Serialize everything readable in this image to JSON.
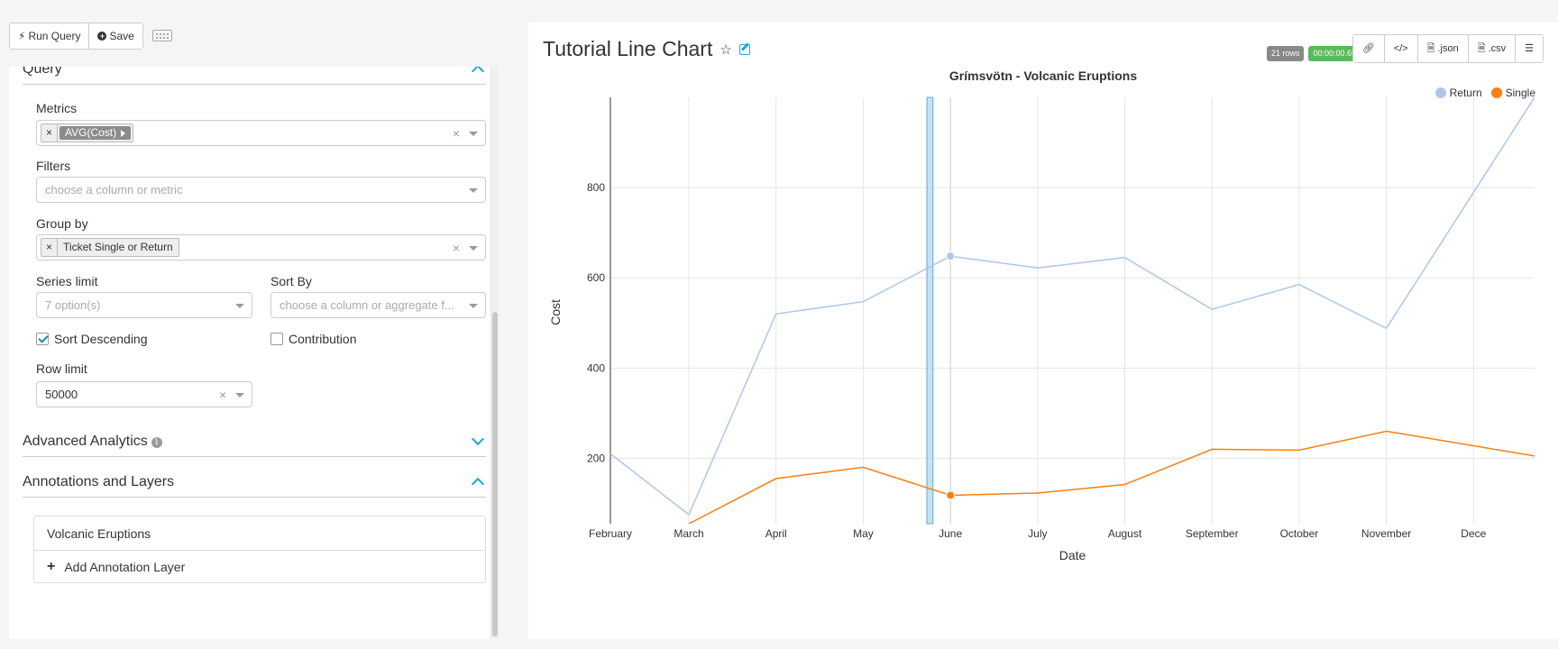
{
  "toolbar": {
    "run_label": "Run Query",
    "save_label": "Save"
  },
  "query_section": {
    "title": "Query",
    "metrics": {
      "label": "Metrics",
      "tag": "AVG(Cost)"
    },
    "filters": {
      "label": "Filters",
      "placeholder": "choose a column or metric"
    },
    "group_by": {
      "label": "Group by",
      "tag": "Ticket Single or Return"
    },
    "series_limit": {
      "label": "Series limit",
      "placeholder": "7 option(s)"
    },
    "sort_by": {
      "label": "Sort By",
      "placeholder": "choose a column or aggregate f..."
    },
    "sort_descending": {
      "label": "Sort Descending",
      "checked": true
    },
    "contribution": {
      "label": "Contribution",
      "checked": false
    },
    "row_limit": {
      "label": "Row limit",
      "value": "50000"
    },
    "clear_symbol": "×"
  },
  "advanced_section": {
    "title": "Advanced Analytics"
  },
  "annotations_section": {
    "title": "Annotations and Layers",
    "layer_name": "Volcanic Eruptions",
    "add_label": "Add Annotation Layer"
  },
  "chart_header": {
    "title": "Tutorial Line Chart",
    "rows_badge": "21 rows",
    "time_badge": "00:00:00.65",
    "json_label": ".json",
    "csv_label": ".csv"
  },
  "chart_data": {
    "type": "line",
    "title": "Grímsvötn - Volcanic Eruptions",
    "xlabel": "Date",
    "ylabel": "Cost",
    "categories": [
      "February",
      "March",
      "April",
      "May",
      "June",
      "July",
      "August",
      "September",
      "October",
      "November",
      "Dece"
    ],
    "x_positions": [
      1.1,
      2.0,
      3.0,
      4.0,
      5.0,
      6.0,
      7.0,
      8.0,
      9.0,
      10.0,
      11.0
    ],
    "y_ticks": [
      200,
      400,
      600,
      800
    ],
    "ylim": [
      55,
      1000
    ],
    "xlim": [
      1.1,
      11.7
    ],
    "series": [
      {
        "name": "Return",
        "color": "#aec7e8",
        "points": [
          [
            1.1,
            210
          ],
          [
            2.0,
            75
          ],
          [
            3.0,
            520
          ],
          [
            4.0,
            547
          ],
          [
            5.0,
            648
          ],
          [
            6.0,
            622
          ],
          [
            7.0,
            645
          ],
          [
            8.0,
            530
          ],
          [
            9.0,
            585
          ],
          [
            10.0,
            488
          ],
          [
            11.7,
            1000
          ]
        ]
      },
      {
        "name": "Single",
        "color": "#ff7f0e",
        "points": [
          [
            2.0,
            55
          ],
          [
            3.0,
            155
          ],
          [
            4.0,
            180
          ],
          [
            5.0,
            118
          ],
          [
            6.0,
            123
          ],
          [
            7.0,
            142
          ],
          [
            8.0,
            220
          ],
          [
            9.0,
            218
          ],
          [
            10.0,
            260
          ],
          [
            11.7,
            205
          ]
        ]
      }
    ],
    "hover_index": 4,
    "annotation_band": {
      "label": "Volcanic Eruptions",
      "x_start": 4.73,
      "x_end": 4.8
    },
    "legend_position": "top-right",
    "grid": true
  },
  "colors": {
    "accent": "#20a7c9",
    "success": "#5cb85c",
    "return_line": "#aec7e8",
    "single_line": "#ff7f0e"
  }
}
